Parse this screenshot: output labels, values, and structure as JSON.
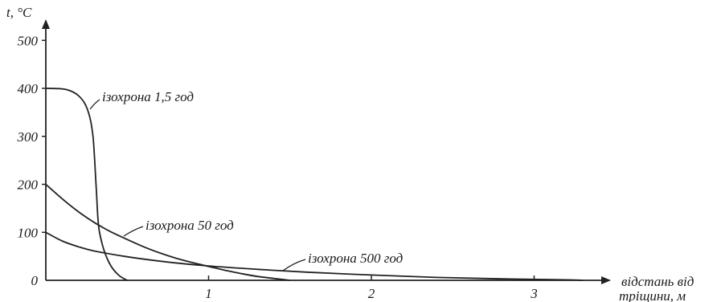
{
  "chart_data": {
    "type": "line",
    "ylabel": "t, °C",
    "xlabel_line1": "відстань від",
    "xlabel_line2": "тріщини, м",
    "xlim": [
      0,
      3.3
    ],
    "ylim": [
      0,
      520
    ],
    "x_ticks": [
      1,
      2,
      3
    ],
    "y_ticks": [
      0,
      100,
      200,
      300,
      400,
      500
    ],
    "grid": false,
    "series": [
      {
        "name": "ізохрона 1,5 год",
        "x": [
          0,
          0.1,
          0.15,
          0.2,
          0.24,
          0.27,
          0.29,
          0.3,
          0.31,
          0.32,
          0.33,
          0.36,
          0.4,
          0.45,
          0.5
        ],
        "y": [
          400,
          399,
          395,
          385,
          368,
          340,
          300,
          250,
          190,
          130,
          100,
          60,
          30,
          10,
          0
        ]
      },
      {
        "name": "ізохрона 50 год",
        "x": [
          0,
          0.1,
          0.2,
          0.3,
          0.4,
          0.5,
          0.6,
          0.7,
          0.8,
          0.9,
          1.0,
          1.1,
          1.2,
          1.3,
          1.4,
          1.5
        ],
        "y": [
          200,
          170,
          143,
          120,
          101,
          85,
          70,
          57,
          46,
          37,
          29,
          21,
          14,
          8,
          4,
          0
        ]
      },
      {
        "name": "ізохрона 500 год",
        "x": [
          0,
          0.1,
          0.2,
          0.3,
          0.5,
          0.75,
          1.0,
          1.3,
          1.6,
          2.0,
          2.4,
          2.8,
          3.2,
          3.3
        ],
        "y": [
          100,
          82,
          70,
          61,
          49,
          38,
          30,
          23,
          17,
          11,
          6,
          3,
          1,
          0
        ]
      }
    ]
  }
}
